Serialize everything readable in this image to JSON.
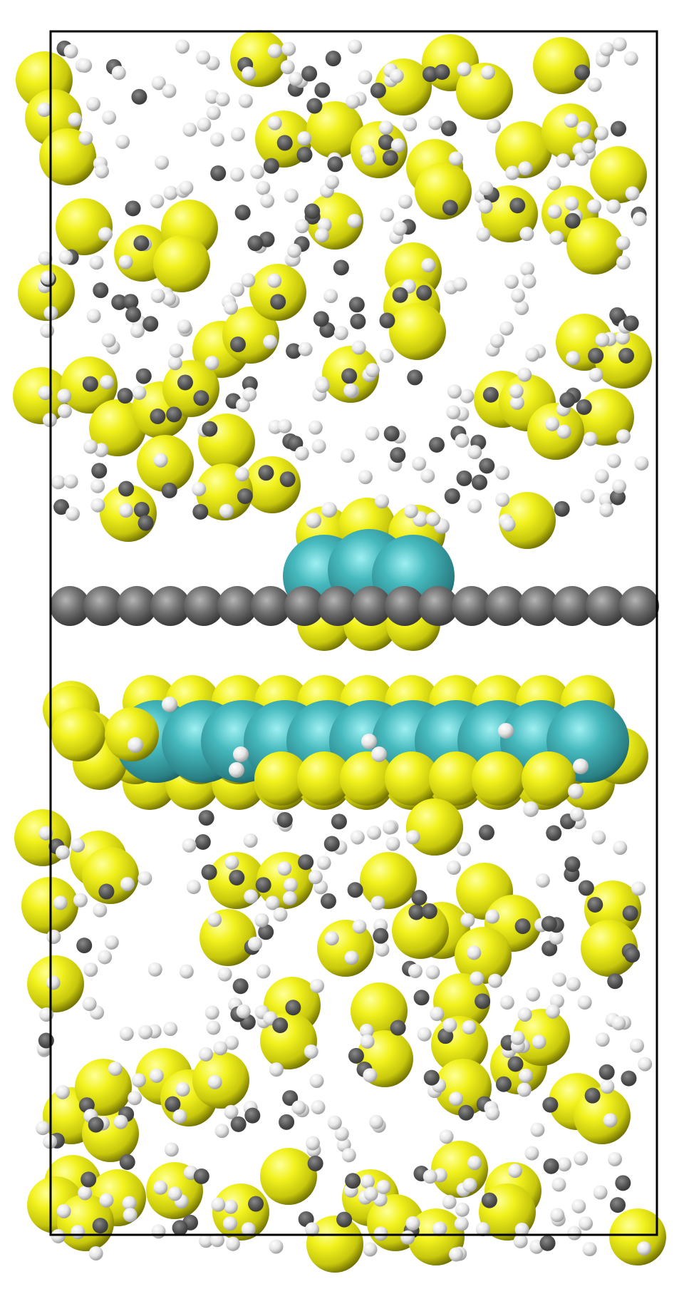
{
  "scene": {
    "description_free": true,
    "atom_colors": {
      "sulfur": "#e8e81a",
      "sulfur_dark": "#6b6b00",
      "metal": "#3fb3b8",
      "metal_dark": "#1c5e62",
      "carbon": "#6e6e6e",
      "carbon_dark": "#2a2a2a",
      "hydrogen": "#f2f2f2",
      "hydrogen_dark": "#8a8a8a",
      "cell_border": "#000000"
    },
    "species": [
      "sulfur",
      "metal",
      "carbon",
      "hydrogen"
    ]
  }
}
